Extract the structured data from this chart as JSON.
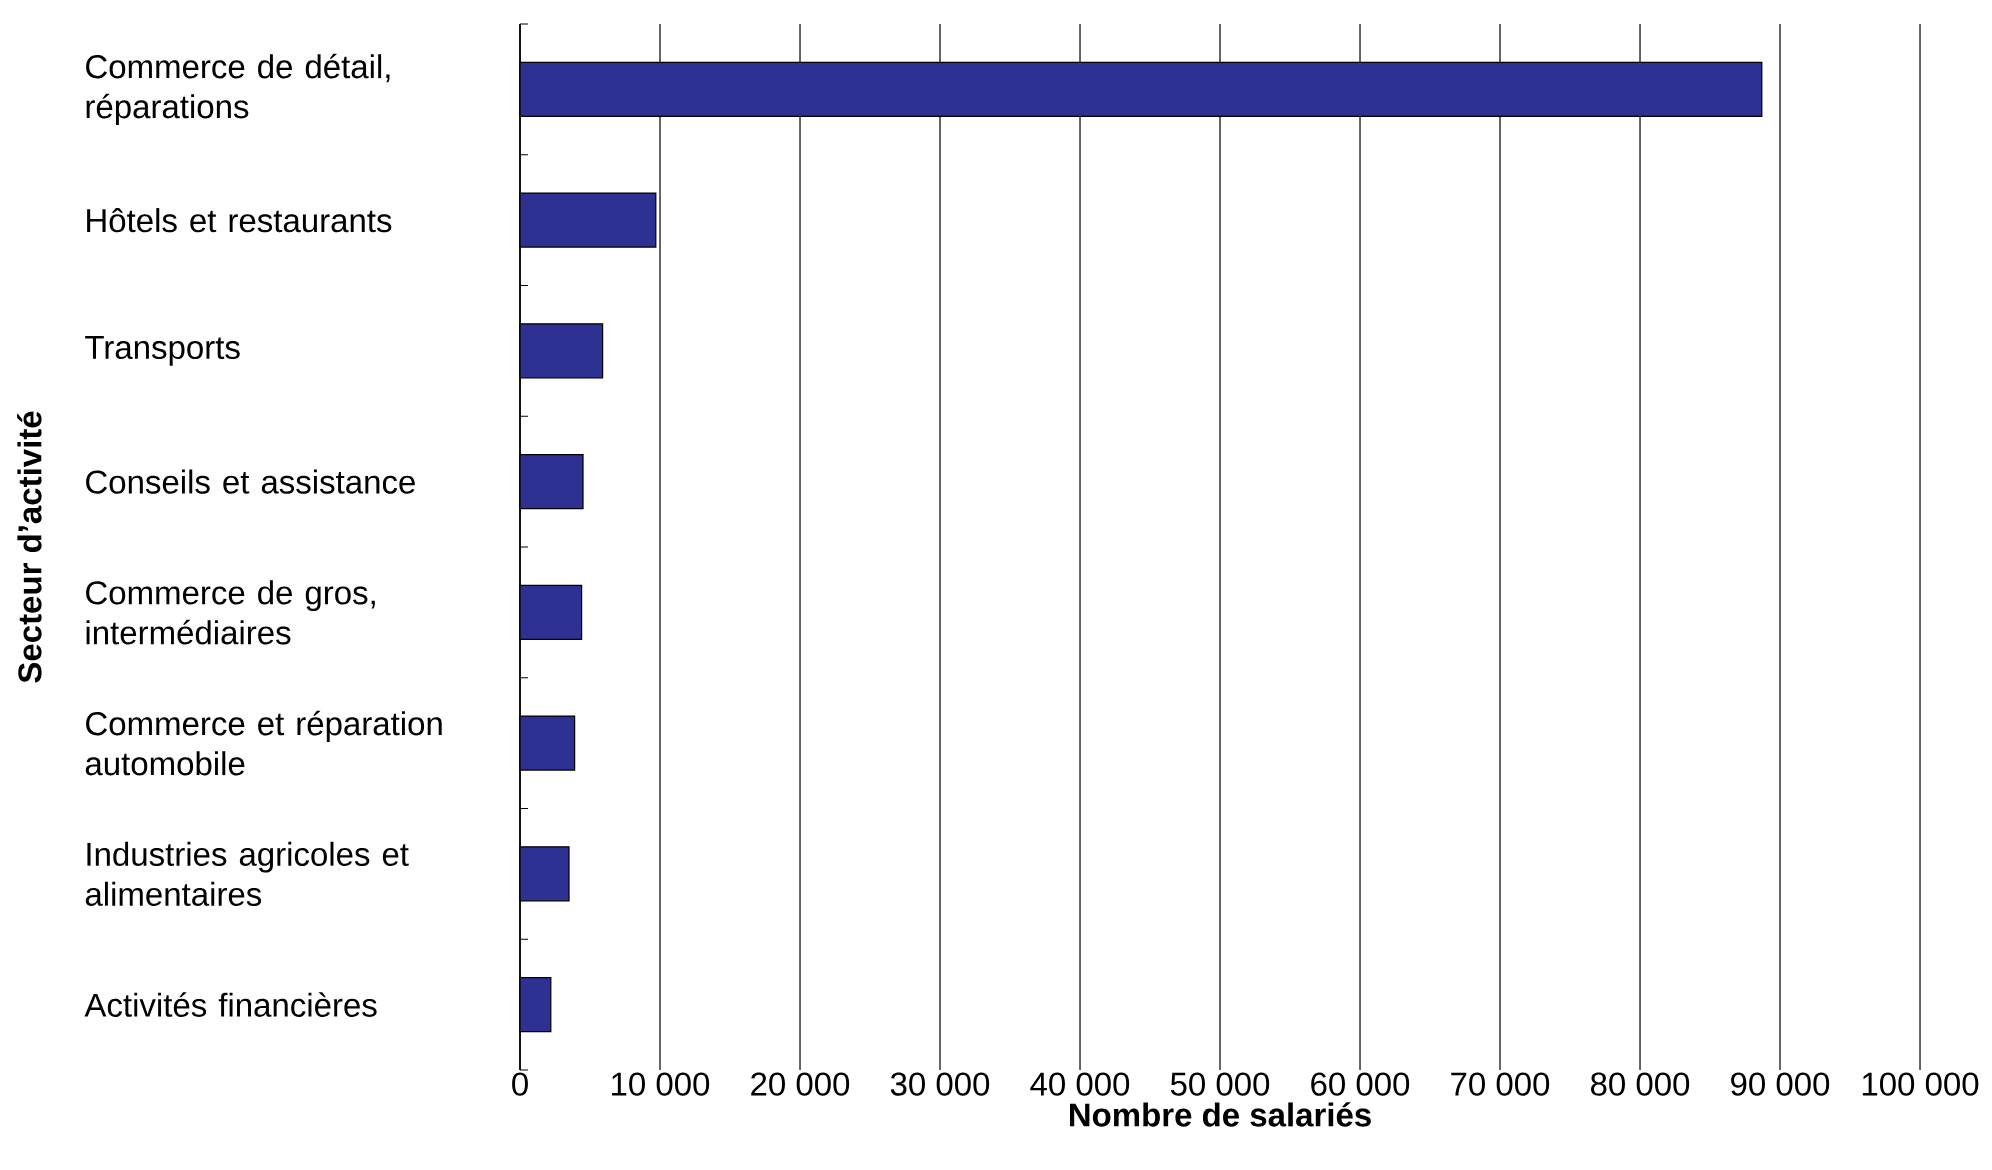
{
  "chart_data": {
    "type": "bar",
    "orientation": "horizontal",
    "xlabel": "Nombre de salariés",
    "ylabel": "Secteur d’activité",
    "categories": [
      "Commerce de détail, réparations",
      "Hôtels et restaurants",
      "Transports",
      "Conseils et assistance",
      "Commerce de gros, intermédiaires",
      "Commerce et réparation automobile",
      "Industries agricoles et alimentaires",
      "Activités financières"
    ],
    "values": [
      88700,
      9700,
      5900,
      4500,
      4400,
      3900,
      3500,
      2200
    ],
    "color": "#2e3192",
    "xlim": [
      0,
      100000
    ],
    "xticks": [
      0,
      {
        "value": 10000,
        "label": "10 000"
      },
      {
        "value": 20000,
        "label": "20 000"
      },
      {
        "value": 30000,
        "label": "30 000"
      },
      {
        "value": 40000,
        "label": "40 000"
      },
      {
        "value": 50000,
        "label": "50 000"
      },
      {
        "value": 60000,
        "label": "60 000"
      },
      {
        "value": 70000,
        "label": "70 000"
      },
      {
        "value": 80000,
        "label": "80 000"
      },
      {
        "value": 90000,
        "label": "90 000"
      },
      {
        "value": 100000,
        "label": "100 000"
      }
    ],
    "grid": "x"
  }
}
